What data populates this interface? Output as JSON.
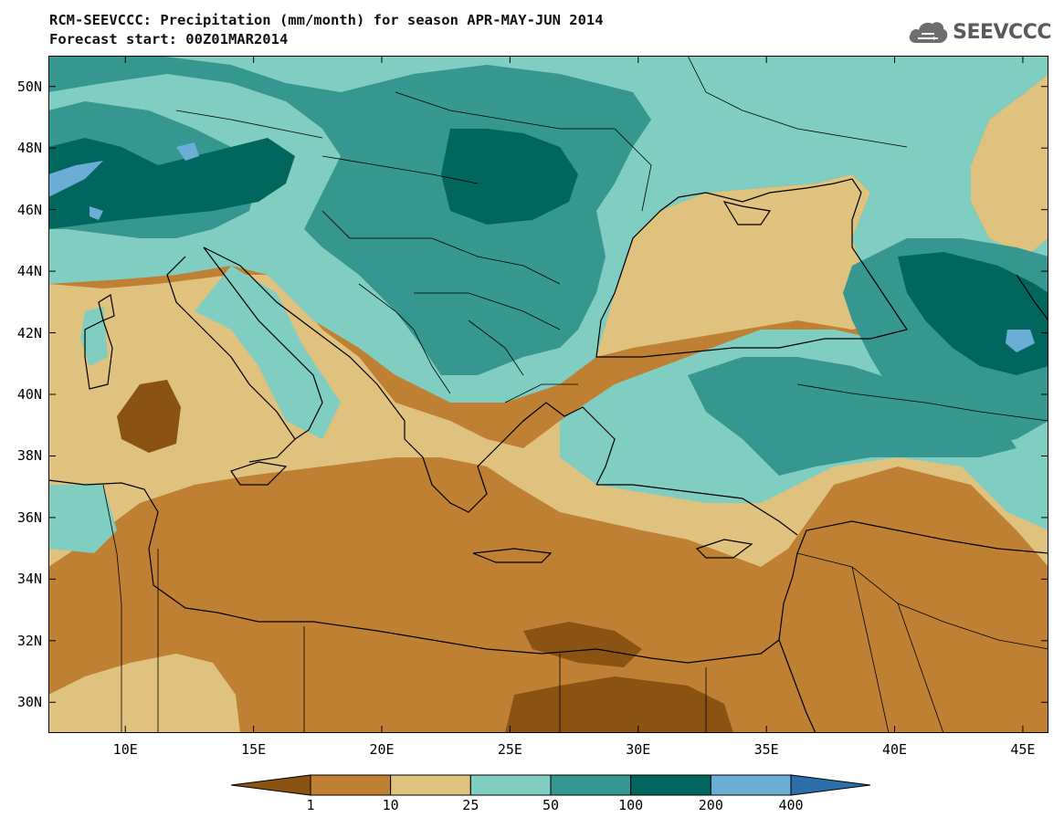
{
  "header": {
    "title_line1": "RCM-SEEVCCC: Precipitation (mm/month) for season APR-MAY-JUN 2014",
    "title_line2": "Forecast start: 00Z01MAR2014"
  },
  "logo": {
    "text": "SEEVCCC",
    "icon": "cloud-icon"
  },
  "map": {
    "projection": "lat-lon",
    "lon_range": [
      7,
      46
    ],
    "lat_range": [
      29,
      51
    ],
    "lat_ticks": [
      "30N",
      "32N",
      "34N",
      "36N",
      "38N",
      "40N",
      "42N",
      "44N",
      "46N",
      "48N",
      "50N"
    ],
    "lat_values": [
      30,
      32,
      34,
      36,
      38,
      40,
      42,
      44,
      46,
      48,
      50
    ],
    "lon_ticks": [
      "10E",
      "15E",
      "20E",
      "25E",
      "30E",
      "35E",
      "40E",
      "45E"
    ],
    "lon_values": [
      10,
      15,
      20,
      25,
      30,
      35,
      40,
      45
    ]
  },
  "colorbar": {
    "levels": [
      "1",
      "10",
      "25",
      "50",
      "100",
      "200",
      "400"
    ],
    "colors": [
      "#8b5311",
      "#bf8033",
      "#dfc27d",
      "#80cdc1",
      "#35978f",
      "#01665e",
      "#6aaed6",
      "#2c6fa8"
    ],
    "units": "mm/month"
  }
}
